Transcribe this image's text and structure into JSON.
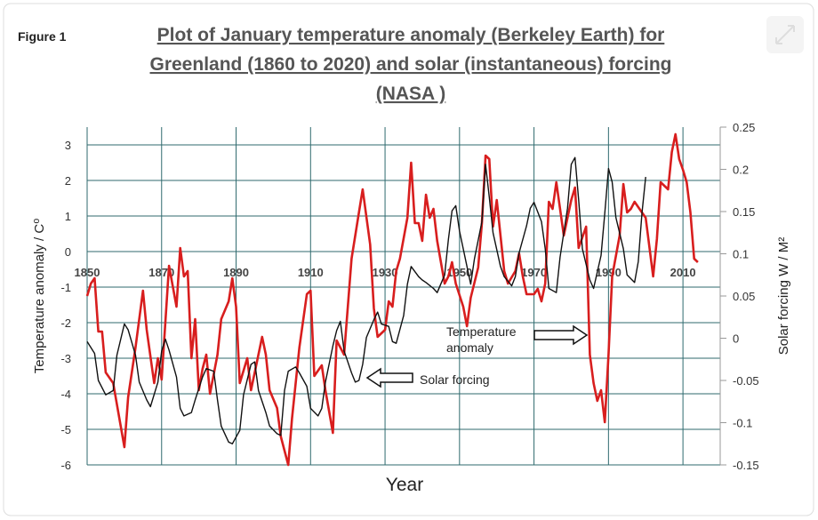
{
  "chart_data": {
    "type": "line",
    "figure_label": "Figure 1",
    "title": [
      "Plot of January temperature anomaly (Berkeley Earth) for",
      "Greenland (1860 to 2020) and solar (instantaneous)  forcing",
      "(NASA )"
    ],
    "xlabel": "Year",
    "ylabel": "Temperature anomaly / C⁰",
    "y2label": "Solar forcing W / M²",
    "xlim": [
      1850,
      2020
    ],
    "xticks": [
      1850,
      1870,
      1890,
      1910,
      1930,
      1950,
      1970,
      1990,
      2010
    ],
    "ylim": [
      -6,
      3.5
    ],
    "yticks": [
      -6,
      -5,
      -4,
      -3,
      -2,
      -1,
      0,
      1,
      2,
      3
    ],
    "y2lim": [
      -0.15,
      0.25
    ],
    "y2ticks": [
      -0.15,
      -0.1,
      -0.05,
      0,
      0.05,
      0.1,
      0.15,
      0.2,
      0.25
    ],
    "grid": true,
    "annotations": [
      "Temperature\nanomaly",
      "Solar forcing"
    ],
    "series": [
      {
        "name": "Temperature anomaly",
        "color": "#d81e1e",
        "axis": "y",
        "x": [
          1850,
          1851,
          1852,
          1853,
          1854,
          1855,
          1857,
          1858,
          1860,
          1861,
          1863,
          1865,
          1866,
          1868,
          1869,
          1870,
          1872,
          1874,
          1875,
          1876,
          1877,
          1878,
          1879,
          1880,
          1881,
          1882,
          1883,
          1885,
          1886,
          1888,
          1889,
          1890,
          1891,
          1893,
          1894,
          1895,
          1897,
          1898,
          1899,
          1901,
          1902,
          1904,
          1905,
          1907,
          1909,
          1910,
          1911,
          1913,
          1914,
          1916,
          1917,
          1919,
          1920,
          1921,
          1923,
          1924,
          1926,
          1927,
          1928,
          1930,
          1931,
          1932,
          1933,
          1934,
          1936,
          1937,
          1938,
          1939,
          1940,
          1941,
          1942,
          1943,
          1944,
          1946,
          1947,
          1948,
          1949,
          1951,
          1952,
          1953,
          1955,
          1956,
          1957,
          1958,
          1959,
          1960,
          1962,
          1963,
          1965,
          1966,
          1967,
          1968,
          1970,
          1971,
          1972,
          1973,
          1974,
          1975,
          1976,
          1978,
          1979,
          1980,
          1981,
          1982,
          1984,
          1985,
          1986,
          1987,
          1988,
          1989,
          1990,
          1991,
          1993,
          1994,
          1995,
          1996,
          1997,
          1999,
          2000,
          2002,
          2003,
          2004,
          2006,
          2007,
          2008,
          2009,
          2010,
          2011,
          2012,
          2013,
          2014
        ],
        "values": [
          -1.25,
          -0.9,
          -0.75,
          -2.25,
          -2.25,
          -3.4,
          -3.7,
          -4.3,
          -5.5,
          -4.1,
          -2.7,
          -1.1,
          -2.2,
          -3.7,
          -3,
          -3.6,
          -0.4,
          -1.55,
          0.1,
          -0.7,
          -0.55,
          -3,
          -1.9,
          -3.9,
          -3.3,
          -2.9,
          -4,
          -2.9,
          -1.9,
          -1.4,
          -0.75,
          -1.55,
          -3.7,
          -3,
          -3.9,
          -3.4,
          -2.4,
          -2.9,
          -3.9,
          -4.4,
          -5.2,
          -6,
          -4.7,
          -2.7,
          -1.2,
          -1.1,
          -3.5,
          -3.2,
          -3.9,
          -5.1,
          -2.5,
          -2.9,
          -1.55,
          -0.2,
          1.1,
          1.75,
          0.2,
          -1.6,
          -2.4,
          -2.2,
          -1.4,
          -1.55,
          -0.55,
          -0.2,
          0.95,
          2.5,
          0.8,
          0.8,
          0.3,
          1.6,
          0.95,
          1.2,
          0.3,
          -0.9,
          -0.7,
          -0.3,
          -0.9,
          -1.55,
          -2.1,
          -1.3,
          -0.45,
          0.8,
          2.7,
          2.6,
          0.7,
          1.45,
          -0.55,
          -0.9,
          -0.55,
          -0.05,
          -0.7,
          -1.2,
          -1.2,
          -1.05,
          -1.4,
          -0.9,
          1.4,
          1.2,
          1.95,
          0.45,
          0.95,
          1.45,
          1.8,
          0.1,
          0.7,
          -2.9,
          -3.7,
          -4.2,
          -3.9,
          -4.8,
          -2.9,
          -0.7,
          0.45,
          1.9,
          1.1,
          1.2,
          1.4,
          1.1,
          0.95,
          -0.7,
          0.35,
          1.95,
          1.75,
          2.8,
          3.3,
          2.6,
          2.3,
          1.95,
          1.1,
          -0.2,
          -0.3
        ]
      },
      {
        "name": "Solar forcing",
        "color": "#111111",
        "axis": "y2",
        "x": [
          1850,
          1852,
          1853,
          1855,
          1857,
          1858,
          1860,
          1861,
          1863,
          1864,
          1866,
          1867,
          1869,
          1870,
          1871,
          1872,
          1874,
          1875,
          1876,
          1878,
          1879,
          1881,
          1882,
          1884,
          1885,
          1886,
          1888,
          1889,
          1891,
          1892,
          1894,
          1895,
          1896,
          1898,
          1899,
          1901,
          1902,
          1903,
          1904,
          1906,
          1907,
          1909,
          1910,
          1912,
          1913,
          1914,
          1916,
          1917,
          1918,
          1919,
          1921,
          1922,
          1923,
          1924,
          1925,
          1927,
          1928,
          1929,
          1931,
          1932,
          1933,
          1935,
          1936,
          1937,
          1939,
          1940,
          1941,
          1943,
          1944,
          1946,
          1947,
          1948,
          1949,
          1950,
          1952,
          1953,
          1954,
          1956,
          1957,
          1958,
          1959,
          1961,
          1962,
          1964,
          1965,
          1966,
          1968,
          1969,
          1970,
          1972,
          1973,
          1974,
          1976,
          1977,
          1979,
          1980,
          1981,
          1982,
          1983,
          1985,
          1986,
          1988,
          1989,
          1990,
          1991,
          1992,
          1994,
          1995,
          1997,
          1998,
          1999,
          2000
        ],
        "values": [
          -0.004,
          -0.018,
          -0.05,
          -0.067,
          -0.062,
          -0.02,
          0.017,
          0.01,
          -0.02,
          -0.052,
          -0.073,
          -0.081,
          -0.052,
          -0.015,
          -0.001,
          -0.014,
          -0.046,
          -0.083,
          -0.092,
          -0.088,
          -0.073,
          -0.046,
          -0.036,
          -0.039,
          -0.073,
          -0.104,
          -0.123,
          -0.125,
          -0.109,
          -0.067,
          -0.031,
          -0.028,
          -0.062,
          -0.088,
          -0.104,
          -0.113,
          -0.115,
          -0.062,
          -0.039,
          -0.034,
          -0.041,
          -0.057,
          -0.083,
          -0.092,
          -0.083,
          -0.052,
          -0.009,
          0.009,
          0.02,
          -0.015,
          -0.041,
          -0.052,
          -0.05,
          -0.031,
          0.001,
          0.022,
          0.031,
          0.017,
          0.014,
          -0.004,
          -0.006,
          0.027,
          0.064,
          0.085,
          0.073,
          0.069,
          0.066,
          0.059,
          0.054,
          0.075,
          0.117,
          0.151,
          0.157,
          0.127,
          0.085,
          0.064,
          0.094,
          0.138,
          0.206,
          0.167,
          0.125,
          0.085,
          0.073,
          0.062,
          0.073,
          0.101,
          0.133,
          0.154,
          0.161,
          0.138,
          0.106,
          0.059,
          0.054,
          0.096,
          0.154,
          0.206,
          0.214,
          0.164,
          0.106,
          0.069,
          0.059,
          0.098,
          0.148,
          0.201,
          0.185,
          0.143,
          0.106,
          0.075,
          0.066,
          0.091,
          0.148,
          0.191
        ]
      }
    ]
  }
}
